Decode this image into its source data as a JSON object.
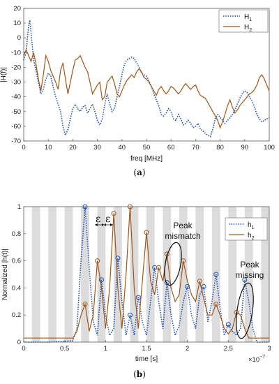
{
  "figure": {
    "caption_a_open": "(",
    "caption_a_letter": "a",
    "caption_a_close": ")",
    "caption_b_open": "(",
    "caption_b_letter": "b",
    "caption_b_close": ")"
  },
  "chart_data": [
    {
      "type": "line",
      "xlabel": "freq [MHz]",
      "ylabel": "|H(f)|",
      "xlim": [
        0,
        100
      ],
      "ylim": [
        -70,
        20
      ],
      "xticks": [
        0,
        10,
        20,
        30,
        40,
        50,
        60,
        70,
        80,
        90,
        100
      ],
      "yticks": [
        -70,
        -60,
        -50,
        -40,
        -30,
        -20,
        -10,
        0,
        10,
        20
      ],
      "grid": false,
      "legend_position": "top-right",
      "legend_entries": [
        {
          "base": "H",
          "sub": "1"
        },
        {
          "base": "H",
          "sub": "2"
        }
      ],
      "colors": {
        "h1": "#1f4fb5",
        "h2": "#a0561a"
      },
      "series": [
        {
          "name": "H1",
          "style": "dotted",
          "x": [
            0,
            1,
            1.5,
            2,
            2.5,
            3,
            3.5,
            4,
            5,
            6,
            7,
            8,
            9,
            10,
            11,
            12,
            13,
            14,
            15,
            16,
            17,
            18,
            19,
            20,
            21,
            22,
            23,
            24,
            25,
            26,
            27,
            28,
            29,
            30,
            31,
            32,
            33,
            34,
            35,
            36,
            37,
            38,
            39,
            40,
            41,
            42,
            43,
            44,
            45,
            46,
            47,
            48,
            49,
            50,
            51,
            52,
            53,
            54,
            55,
            56,
            57,
            58,
            59,
            60,
            61,
            62,
            63,
            64,
            65,
            66,
            67,
            68,
            69,
            70,
            71,
            72,
            73,
            74,
            75,
            76,
            77,
            78,
            79,
            80,
            81,
            82,
            83,
            84,
            85,
            86,
            87,
            88,
            89,
            90,
            91,
            92,
            93,
            94,
            95,
            96,
            97,
            98,
            99,
            100
          ],
          "y": [
            -15,
            -10,
            0,
            8,
            12,
            3,
            -5,
            -15,
            -22,
            -30,
            -38,
            -35,
            -28,
            -24,
            -26,
            -33,
            -40,
            -45,
            -50,
            -60,
            -66,
            -62,
            -55,
            -48,
            -45,
            -48,
            -50,
            -47,
            -46,
            -51,
            -48,
            -45,
            -50,
            -56,
            -59,
            -55,
            -45,
            -38,
            -45,
            -50,
            -48,
            -40,
            -33,
            -25,
            -18,
            -15,
            -14,
            -13,
            -14,
            -17,
            -20,
            -24,
            -25,
            -26,
            -29,
            -33,
            -38,
            -42,
            -46,
            -52,
            -53,
            -51,
            -48,
            -50,
            -55,
            -56,
            -52,
            -55,
            -59,
            -58,
            -56,
            -58,
            -61,
            -60,
            -58,
            -62,
            -63,
            -65,
            -66,
            -67,
            -62,
            -55,
            -52,
            -54,
            -56,
            -58,
            -56,
            -54,
            -52,
            -49,
            -45,
            -41,
            -38,
            -36,
            -37,
            -40,
            -43,
            -47,
            -52,
            -55,
            -57,
            -56,
            -55,
            -54
          ]
        },
        {
          "name": "H2",
          "style": "solid",
          "x": [
            0,
            1,
            2,
            3,
            4,
            5,
            6,
            7,
            8,
            9,
            10,
            11,
            12,
            13,
            14,
            15,
            16,
            17,
            18,
            19,
            20,
            21,
            22,
            23,
            24,
            25,
            26,
            27,
            28,
            29,
            30,
            31,
            32,
            33,
            34,
            35,
            36,
            37,
            38,
            39,
            40,
            41,
            42,
            43,
            44,
            45,
            46,
            47,
            48,
            49,
            50,
            51,
            52,
            53,
            54,
            55,
            56,
            57,
            58,
            59,
            60,
            61,
            62,
            63,
            64,
            65,
            66,
            67,
            68,
            69,
            70,
            71,
            72,
            73,
            74,
            75,
            76,
            77,
            78,
            79,
            80,
            81,
            82,
            83,
            84,
            85,
            86,
            87,
            88,
            89,
            90,
            91,
            92,
            93,
            94,
            95,
            96,
            97,
            98,
            99,
            100
          ],
          "y": [
            -12,
            -8,
            -12,
            -16,
            -10,
            -18,
            -28,
            -36,
            -25,
            -12,
            -16,
            -22,
            -26,
            -30,
            -35,
            -22,
            -17,
            -28,
            -38,
            -30,
            -22,
            -15,
            -14,
            -12,
            -16,
            -20,
            -23,
            -30,
            -38,
            -35,
            -32,
            -30,
            -42,
            -40,
            -30,
            -28,
            -26,
            -31,
            -38,
            -40,
            -36,
            -32,
            -29,
            -27,
            -25,
            -27,
            -23,
            -21,
            -23,
            -27,
            -28,
            -30,
            -33,
            -36,
            -39,
            -35,
            -33,
            -36,
            -38,
            -36,
            -33,
            -34,
            -36,
            -38,
            -36,
            -33,
            -31,
            -33,
            -35,
            -33,
            -32,
            -36,
            -39,
            -40,
            -41,
            -44,
            -47,
            -50,
            -53,
            -56,
            -61,
            -57,
            -52,
            -46,
            -42,
            -47,
            -51,
            -49,
            -46,
            -44,
            -42,
            -40,
            -38,
            -37,
            -35,
            -32,
            -27,
            -25,
            -28,
            -32,
            -36
          ]
        }
      ]
    },
    {
      "type": "line",
      "xlabel": "time [s]",
      "ylabel": "Normalized |h(t)|",
      "xlim": [
        0,
        3
      ],
      "ylim": [
        0,
        1
      ],
      "xticks": [
        0,
        0.5,
        1,
        1.5,
        2,
        2.5,
        3
      ],
      "yticks": [
        0,
        0.2,
        0.4,
        0.6,
        0.8,
        1
      ],
      "x_exponent_label": "×10",
      "x_exponent_power": "−7",
      "grid": false,
      "background_bands": "alternating gray bins of width epsilon",
      "band_count": 30,
      "legend_position": "top-right",
      "legend_entries": [
        {
          "base": "h",
          "sub": "1"
        },
        {
          "base": "h",
          "sub": "2"
        }
      ],
      "colors": {
        "h1": "#1f4fb5",
        "h2": "#a0561a",
        "band": "#dcdcdc"
      },
      "annotations": {
        "epsilon_1": "ε",
        "epsilon_2": "ε",
        "peak_mismatch_line1": "Peak",
        "peak_mismatch_line2": "mismatch",
        "peak_missing_line1": "Peak",
        "peak_missing_line2": "missing"
      },
      "series": [
        {
          "name": "h1",
          "style": "dotted",
          "x": [
            0,
            0.3,
            0.6,
            0.65,
            0.7,
            0.75,
            0.8,
            0.85,
            0.9,
            0.95,
            1.0,
            1.05,
            1.1,
            1.15,
            1.2,
            1.25,
            1.3,
            1.35,
            1.4,
            1.45,
            1.5,
            1.55,
            1.6,
            1.65,
            1.7,
            1.75,
            1.8,
            1.85,
            1.9,
            1.95,
            2.0,
            2.05,
            2.1,
            2.15,
            2.2,
            2.25,
            2.3,
            2.35,
            2.4,
            2.45,
            2.5,
            2.55,
            2.6,
            2.65,
            2.7,
            2.75,
            2.8,
            2.85,
            2.9,
            2.95,
            3.0
          ],
          "y": [
            0.0,
            0.0,
            0.01,
            0.1,
            0.6,
            1.0,
            0.55,
            0.15,
            0.05,
            0.46,
            0.2,
            0.05,
            0.1,
            0.62,
            0.3,
            0.05,
            0.2,
            0.05,
            0.33,
            0.15,
            0.05,
            0.3,
            0.55,
            0.3,
            0.1,
            0.44,
            0.2,
            0.05,
            0.12,
            0.3,
            0.41,
            0.2,
            0.1,
            0.35,
            0.41,
            0.15,
            0.3,
            0.5,
            0.25,
            0.05,
            0.13,
            0.08,
            0.05,
            0.1,
            0.46,
            0.3,
            0.1,
            0.0,
            0.0,
            0.0,
            0.0
          ]
        },
        {
          "name": "h2",
          "style": "solid",
          "x": [
            0,
            0.5,
            0.6,
            0.65,
            0.7,
            0.75,
            0.8,
            0.85,
            0.9,
            0.95,
            1.0,
            1.05,
            1.1,
            1.15,
            1.2,
            1.25,
            1.3,
            1.35,
            1.4,
            1.45,
            1.5,
            1.55,
            1.6,
            1.65,
            1.7,
            1.75,
            1.8,
            1.85,
            1.9,
            1.95,
            2.0,
            2.05,
            2.1,
            2.15,
            2.2,
            2.25,
            2.3,
            2.35,
            2.4,
            2.45,
            2.5,
            2.55,
            2.6,
            2.65,
            2.7,
            2.75,
            2.8,
            2.85,
            2.9,
            2.95,
            3.0
          ],
          "y": [
            0.03,
            0.03,
            0.03,
            0.08,
            0.2,
            0.28,
            0.08,
            0.2,
            0.6,
            0.4,
            0.1,
            0.4,
            0.95,
            0.4,
            0.1,
            0.5,
            1.0,
            0.4,
            0.1,
            0.45,
            0.81,
            0.45,
            0.35,
            0.55,
            0.45,
            0.65,
            0.4,
            0.3,
            0.35,
            0.6,
            0.45,
            0.35,
            0.3,
            0.45,
            0.32,
            0.2,
            0.2,
            0.28,
            0.2,
            0.1,
            0.06,
            0.1,
            0.22,
            0.2,
            0.1,
            0.03,
            0.03,
            0.03,
            0.03,
            0.03,
            0.03
          ]
        }
      ]
    }
  ]
}
